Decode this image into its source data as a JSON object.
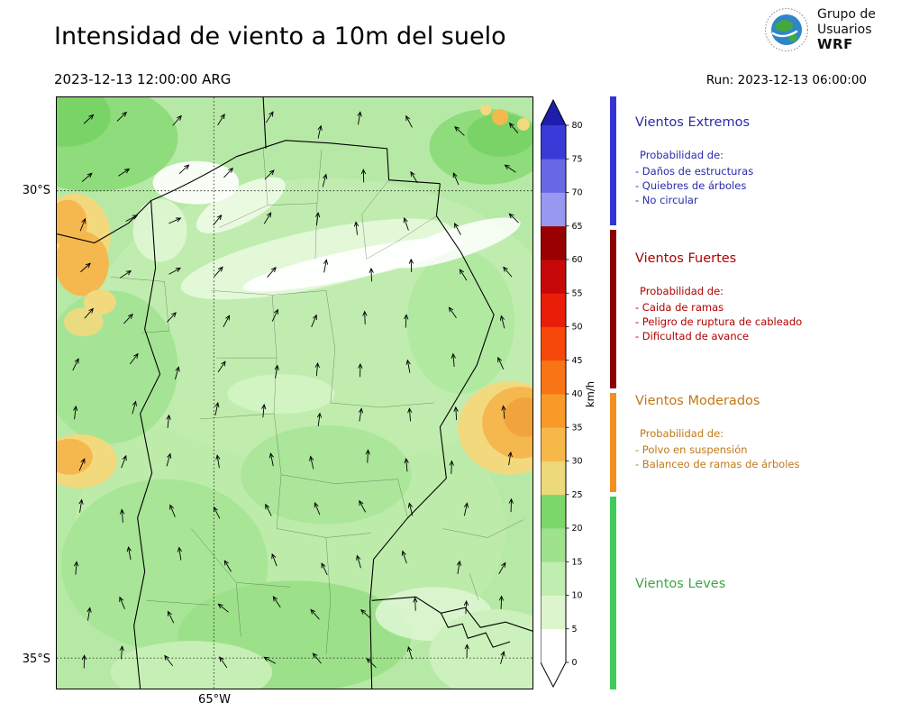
{
  "header": {
    "title": "Intensidad de viento a 10m del suelo",
    "datetime": "2023-12-13 12:00:00 ARG",
    "run": "Run: 2023-12-13 06:00:00"
  },
  "logo": {
    "line1": "Grupo de",
    "line2": "Usuarios",
    "line3": "WRF"
  },
  "map_axes": {
    "lat_top": "30°S",
    "lat_bottom": "35°S",
    "lon": "65°W"
  },
  "colorbar": {
    "unit": "km/h",
    "ticks": [
      0,
      5,
      10,
      15,
      20,
      25,
      30,
      35,
      40,
      45,
      50,
      55,
      60,
      65,
      70,
      75,
      80
    ],
    "segments": [
      {
        "from": 0,
        "to": 5,
        "color": "#ffffff"
      },
      {
        "from": 5,
        "to": 10,
        "color": "#ddf5cd"
      },
      {
        "from": 10,
        "to": 15,
        "color": "#c0edb0"
      },
      {
        "from": 15,
        "to": 20,
        "color": "#9fe28d"
      },
      {
        "from": 20,
        "to": 25,
        "color": "#7cd76a"
      },
      {
        "from": 25,
        "to": 30,
        "color": "#edd87a"
      },
      {
        "from": 30,
        "to": 35,
        "color": "#f7b84a"
      },
      {
        "from": 35,
        "to": 40,
        "color": "#f99a28"
      },
      {
        "from": 40,
        "to": 45,
        "color": "#f87414"
      },
      {
        "from": 45,
        "to": 50,
        "color": "#f5480a"
      },
      {
        "from": 50,
        "to": 55,
        "color": "#e81e08"
      },
      {
        "from": 55,
        "to": 60,
        "color": "#c60808"
      },
      {
        "from": 60,
        "to": 65,
        "color": "#990000"
      },
      {
        "from": 65,
        "to": 70,
        "color": "#9898f2"
      },
      {
        "from": 70,
        "to": 75,
        "color": "#6868e6"
      },
      {
        "from": 75,
        "to": 80,
        "color": "#3a3ad8"
      }
    ],
    "over_color": "#1e1eaa",
    "under_color": "#ffffff"
  },
  "legend": {
    "categories": [
      {
        "id": "extremos",
        "name": "Vientos Extremos",
        "title_color": "#2a2aad",
        "text_color": "#2a2aad",
        "bar_color": "#3434d4",
        "intro": "Probabilidad de:",
        "items": [
          "- Daños de estructuras",
          "- Quiebres de árboles",
          "- No circular"
        ]
      },
      {
        "id": "fuertes",
        "name": "Vientos Fuertes",
        "title_color": "#b00000",
        "text_color": "#b00000",
        "bar_color": "#8b0000",
        "intro": "Probabilidad de:",
        "items": [
          "- Caida de ramas",
          "- Peligro de ruptura de cableado",
          "- Dificultad de avance"
        ]
      },
      {
        "id": "moderados",
        "name": "Vientos Moderados",
        "title_color": "#c07818",
        "text_color": "#c07818",
        "bar_color": "#f09020",
        "intro": "Probabilidad de:",
        "items": [
          "- Polvo en suspensión",
          "- Balanceo de ramas de árboles"
        ]
      },
      {
        "id": "leves",
        "name": "Vientos Leves",
        "title_color": "#3aa845",
        "text_color": "#3aa845",
        "bar_color": "#3ecb5a",
        "intro": "",
        "items": []
      }
    ]
  }
}
